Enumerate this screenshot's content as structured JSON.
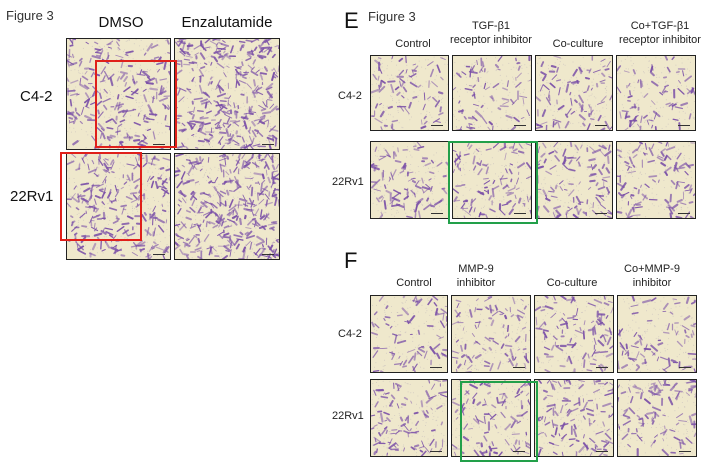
{
  "left_panel": {
    "figure_label": "Figure 3",
    "col_labels": [
      "DMSO",
      "Enzalutamide"
    ],
    "row_labels": [
      "C4-2",
      "22Rv1"
    ]
  },
  "panel_e": {
    "letter": "E",
    "figure_label": "Figure 3",
    "col_labels": [
      [
        "Control"
      ],
      [
        "TGF-β1",
        "receptor inhibitor"
      ],
      [
        "Co-culture"
      ],
      [
        "Co+TGF-β1",
        "receptor inhibitor"
      ]
    ],
    "row_labels": [
      "C4-2",
      "22Rv1"
    ]
  },
  "panel_f": {
    "letter": "F",
    "col_labels": [
      [
        "Control"
      ],
      [
        "MMP-9",
        "inhibitor"
      ],
      [
        "Co-culture"
      ],
      [
        "Co+MMP-9",
        "inhibitor"
      ]
    ],
    "row_labels": [
      "C4-2",
      "22Rv1"
    ]
  },
  "colors": {
    "stain": "#7a4fa8",
    "background": "#efe8cc",
    "highlight_red": "#e0201a",
    "highlight_green": "#22a04a"
  }
}
